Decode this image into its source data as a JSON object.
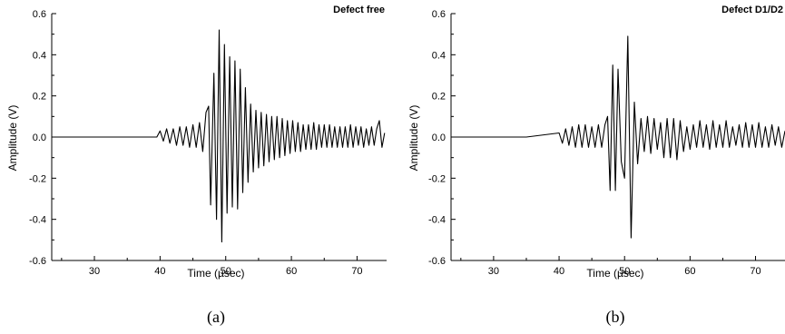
{
  "chart_data": [
    {
      "type": "line",
      "title": "Defect free",
      "caption": "(a)",
      "xlabel": "Time (µsec)",
      "ylabel": "Amplitude (V)",
      "xlim": [
        23.5,
        74.5
      ],
      "ylim": [
        -0.6,
        0.6
      ],
      "xticks": [
        30,
        40,
        50,
        60,
        70
      ],
      "xtick_labels": [
        "30",
        "40",
        "50",
        "60",
        "70"
      ],
      "yticks": [
        -0.6,
        -0.4,
        -0.2,
        0.0,
        0.2,
        0.4,
        0.6
      ],
      "ytick_labels": [
        "-0.6",
        "-0.4",
        "-0.2",
        "0.0",
        "0.2",
        "0.4",
        "0.6"
      ],
      "grid": false,
      "series": [
        {
          "x": [
            23.5,
            30,
            35,
            39.5,
            40.0,
            40.5,
            41.0,
            41.5,
            42.0,
            42.5,
            43.0,
            43.5,
            44.0,
            44.5,
            45.0,
            45.5,
            46.0,
            46.5,
            47.0,
            47.4,
            47.7,
            48.2,
            48.6,
            49.0,
            49.4,
            49.8,
            50.2,
            50.6,
            51.0,
            51.4,
            51.8,
            52.2,
            52.6,
            53.0,
            53.4,
            53.8,
            54.2,
            54.6,
            55.0,
            55.4,
            55.8,
            56.2,
            56.6,
            57.0,
            57.4,
            57.8,
            58.2,
            58.6,
            59.0,
            59.4,
            59.8,
            60.2,
            60.6,
            61.0,
            61.4,
            61.8,
            62.2,
            62.6,
            63.0,
            63.4,
            63.8,
            64.2,
            64.6,
            65.0,
            65.4,
            65.8,
            66.2,
            66.6,
            67.0,
            67.4,
            67.8,
            68.2,
            68.6,
            69.0,
            69.4,
            69.8,
            70.2,
            70.6,
            71.0,
            71.4,
            71.8,
            72.2,
            72.6,
            73.0,
            73.4,
            73.8,
            74.2
          ],
          "y": [
            0.0,
            0.0,
            0.0,
            0.0,
            0.03,
            -0.02,
            0.04,
            -0.03,
            0.04,
            -0.04,
            0.05,
            -0.04,
            0.05,
            -0.05,
            0.06,
            -0.05,
            0.07,
            -0.07,
            0.12,
            0.15,
            -0.33,
            0.31,
            -0.4,
            0.52,
            -0.51,
            0.45,
            -0.37,
            0.39,
            -0.34,
            0.37,
            -0.35,
            0.33,
            -0.27,
            0.24,
            -0.22,
            0.16,
            -0.17,
            0.13,
            -0.15,
            0.12,
            -0.14,
            0.11,
            -0.12,
            0.1,
            -0.11,
            0.1,
            -0.1,
            0.09,
            -0.09,
            0.08,
            -0.08,
            0.08,
            -0.07,
            0.07,
            -0.07,
            0.06,
            -0.06,
            0.06,
            -0.06,
            0.07,
            -0.06,
            0.06,
            -0.05,
            0.06,
            -0.05,
            0.06,
            -0.05,
            0.05,
            -0.05,
            0.05,
            -0.05,
            0.05,
            -0.05,
            0.06,
            -0.05,
            0.05,
            -0.04,
            0.05,
            -0.05,
            0.04,
            -0.04,
            0.05,
            -0.04,
            0.04,
            0.08,
            -0.05,
            0.02
          ]
        }
      ]
    },
    {
      "type": "line",
      "title": "Defect D1/D2",
      "caption": "(b)",
      "xlabel": "Time (µsec)",
      "ylabel": "Amplitude (V)",
      "xlim": [
        23.5,
        74.5
      ],
      "ylim": [
        -0.6,
        0.6
      ],
      "xticks": [
        30,
        40,
        50,
        60,
        70
      ],
      "xtick_labels": [
        "30",
        "40",
        "50",
        "60",
        "70"
      ],
      "yticks": [
        -0.6,
        -0.4,
        -0.2,
        0.0,
        0.2,
        0.4,
        0.6
      ],
      "ytick_labels": [
        "-0.6",
        "-0.4",
        "-0.2",
        "0.0",
        "0.2",
        "0.4",
        "0.6"
      ],
      "grid": false,
      "series": [
        {
          "x": [
            23.5,
            30,
            35,
            40.0,
            40.5,
            41.0,
            41.5,
            42.0,
            42.5,
            43.0,
            43.5,
            44.0,
            44.5,
            45.0,
            45.5,
            46.0,
            46.5,
            47.0,
            47.4,
            47.8,
            48.2,
            48.6,
            49.0,
            49.5,
            50.0,
            50.5,
            51.0,
            51.5,
            52.0,
            52.5,
            53.0,
            53.5,
            54.0,
            54.5,
            55.0,
            55.5,
            56.0,
            56.5,
            57.0,
            57.5,
            58.0,
            58.5,
            59.0,
            59.5,
            60.0,
            60.5,
            61.0,
            61.5,
            62.0,
            62.5,
            63.0,
            63.5,
            64.0,
            64.5,
            65.0,
            65.5,
            66.0,
            66.5,
            67.0,
            67.5,
            68.0,
            68.5,
            69.0,
            69.5,
            70.0,
            70.5,
            71.0,
            71.5,
            72.0,
            72.5,
            73.0,
            73.5,
            74.0,
            74.5
          ],
          "y": [
            0.0,
            0.0,
            0.0,
            0.02,
            -0.03,
            0.04,
            -0.04,
            0.05,
            -0.05,
            0.06,
            -0.05,
            0.06,
            -0.05,
            0.05,
            -0.05,
            0.06,
            -0.05,
            0.06,
            0.1,
            -0.26,
            0.35,
            -0.26,
            0.33,
            -0.12,
            -0.2,
            0.49,
            -0.49,
            0.17,
            -0.13,
            0.09,
            -0.07,
            0.1,
            -0.08,
            0.09,
            -0.06,
            0.07,
            -0.1,
            0.09,
            -0.1,
            0.09,
            -0.11,
            0.08,
            -0.07,
            0.05,
            -0.06,
            0.06,
            -0.05,
            0.08,
            -0.05,
            0.06,
            -0.06,
            0.08,
            -0.05,
            0.06,
            -0.05,
            0.08,
            -0.05,
            0.05,
            -0.04,
            0.06,
            -0.05,
            0.07,
            -0.05,
            0.06,
            -0.05,
            0.07,
            -0.05,
            0.05,
            -0.05,
            0.06,
            -0.04,
            0.05,
            -0.05,
            0.03
          ]
        }
      ]
    }
  ]
}
